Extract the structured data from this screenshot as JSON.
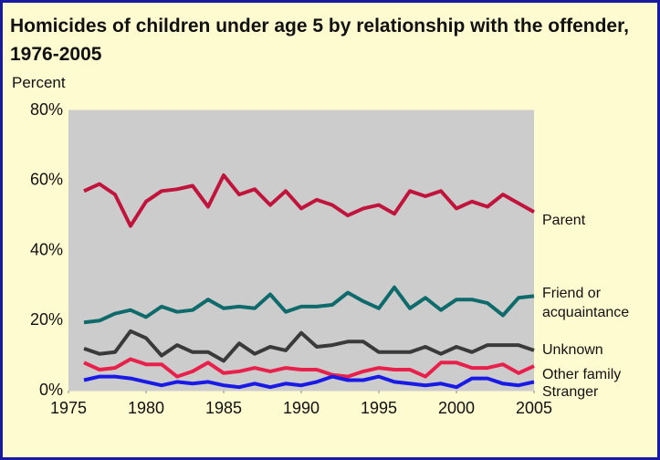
{
  "chart_data": {
    "type": "line",
    "title": "Homicides of children under age 5 by relationship with the offender, 1976-2005",
    "y_axis_label": "Percent",
    "x": [
      1976,
      1977,
      1978,
      1979,
      1980,
      1981,
      1982,
      1983,
      1984,
      1985,
      1986,
      1987,
      1988,
      1989,
      1990,
      1991,
      1992,
      1993,
      1994,
      1995,
      1996,
      1997,
      1998,
      1999,
      2000,
      2001,
      2002,
      2003,
      2004,
      2005
    ],
    "series": [
      {
        "name": "Parent",
        "color": "#c0143c",
        "values": [
          57,
          59,
          56,
          47,
          54,
          57,
          57.5,
          58.5,
          52.5,
          61.5,
          56,
          57.5,
          53,
          57,
          52,
          54.5,
          53,
          50,
          52,
          53,
          50.5,
          57,
          55.5,
          57,
          52,
          54,
          52.5,
          56,
          53.5,
          51
        ]
      },
      {
        "name": "Friend or acquaintance",
        "color": "#0f6b6b",
        "values": [
          19.5,
          20,
          22,
          23,
          21,
          24,
          22.5,
          23,
          26,
          23.5,
          24,
          23.5,
          27.5,
          22.5,
          24,
          24,
          24.5,
          28,
          25.5,
          23.5,
          29.5,
          23.5,
          26.5,
          23,
          26,
          26,
          25,
          21.5,
          26.5,
          27
        ]
      },
      {
        "name": "Unknown",
        "color": "#3a3a3a",
        "values": [
          12,
          10.5,
          11,
          17,
          15,
          10,
          13,
          11,
          11,
          8.5,
          13.5,
          10.5,
          12.5,
          11.5,
          16.5,
          12.5,
          13,
          14,
          14,
          11,
          11,
          11,
          12.5,
          10.5,
          12.5,
          11,
          13,
          13,
          13,
          11.5
        ]
      },
      {
        "name": "Other family",
        "color": "#e8204c",
        "values": [
          8,
          6,
          6.5,
          9,
          7.5,
          7.5,
          4,
          5.5,
          8,
          5,
          5.5,
          6.5,
          5.5,
          6.5,
          6,
          6,
          4.5,
          4,
          5.5,
          6.5,
          6,
          6,
          4,
          8,
          8,
          6.5,
          6.5,
          7.5,
          5,
          7
        ]
      },
      {
        "name": "Stranger",
        "color": "#1a1ae6",
        "values": [
          3,
          4,
          4,
          3.5,
          2.5,
          1.5,
          2.5,
          2,
          2.5,
          1.5,
          1,
          2,
          1,
          2,
          1.5,
          2.5,
          4,
          3,
          3,
          4,
          2.5,
          2,
          1.5,
          2,
          1,
          3.5,
          3.5,
          2,
          1.5,
          2.5
        ]
      }
    ],
    "xlim": [
      1975,
      2005
    ],
    "xticks": [
      1975,
      1980,
      1985,
      1990,
      1995,
      2000,
      2005
    ],
    "ylim": [
      0,
      80
    ],
    "yticks": [
      {
        "value": 0,
        "label": "0%"
      },
      {
        "value": 20,
        "label": "20%"
      },
      {
        "value": 40,
        "label": "40%"
      },
      {
        "value": 60,
        "label": "60%"
      },
      {
        "value": 80,
        "label": "80%"
      }
    ],
    "grid": true
  }
}
